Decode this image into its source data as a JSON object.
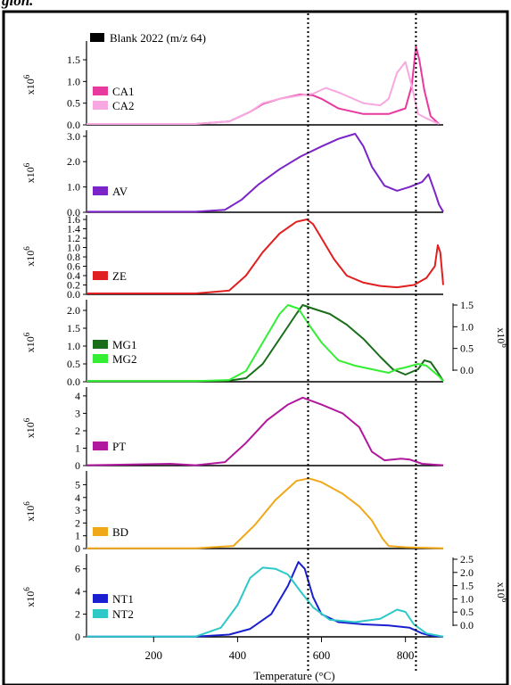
{
  "caption_fragment": "gion.",
  "legend_top": {
    "label": "Blank 2022 (m/z 64)",
    "color": "#000000"
  },
  "xaxis": {
    "label": "Temperature (°C)",
    "ticks": [
      200,
      400,
      600,
      800
    ],
    "range": [
      40,
      890
    ]
  },
  "vlines": [
    568,
    825
  ],
  "yunit": "x10",
  "yexp": "6",
  "chart_data": [
    {
      "type": "line",
      "ylim": [
        0,
        1.85
      ],
      "yticks": [
        "0.0",
        "0.5",
        "1.0",
        "1.5"
      ],
      "series": [
        {
          "name": "CA1",
          "color": "#e8399f",
          "x": [
            40,
            300,
            380,
            430,
            460,
            500,
            550,
            580,
            600,
            640,
            700,
            760,
            800,
            815,
            825,
            833,
            845,
            860,
            880
          ],
          "y": [
            0.02,
            0.02,
            0.08,
            0.3,
            0.48,
            0.6,
            0.7,
            0.68,
            0.6,
            0.38,
            0.25,
            0.25,
            0.38,
            0.9,
            1.8,
            1.5,
            0.8,
            0.2,
            0.02
          ]
        },
        {
          "name": "CA2",
          "color": "#f7a8e0",
          "x": [
            40,
            300,
            380,
            430,
            460,
            500,
            550,
            580,
            610,
            640,
            700,
            740,
            760,
            780,
            800,
            815,
            830,
            850,
            880
          ],
          "y": [
            0.02,
            0.02,
            0.08,
            0.3,
            0.5,
            0.6,
            0.68,
            0.72,
            0.85,
            0.75,
            0.5,
            0.45,
            0.6,
            1.2,
            1.45,
            0.9,
            0.25,
            0.15,
            0.02
          ]
        }
      ]
    },
    {
      "type": "line",
      "ylim": [
        0,
        3.1
      ],
      "yticks": [
        "0.0",
        "1.0",
        "2.0",
        "3.0"
      ],
      "series": [
        {
          "name": "AV",
          "color": "#7b24c8",
          "x": [
            40,
            300,
            370,
            410,
            450,
            500,
            550,
            600,
            640,
            680,
            700,
            720,
            750,
            780,
            810,
            840,
            855,
            870,
            880,
            890
          ],
          "y": [
            0.02,
            0.02,
            0.1,
            0.5,
            1.1,
            1.7,
            2.2,
            2.6,
            2.9,
            3.1,
            2.6,
            1.8,
            1.05,
            0.85,
            1.0,
            1.2,
            1.5,
            0.8,
            0.3,
            0.02
          ]
        }
      ]
    },
    {
      "type": "line",
      "ylim": [
        0,
        1.62
      ],
      "yticks": [
        "0.0",
        "0.2",
        "0.4",
        "0.6",
        "0.8",
        "1.0",
        "1.2",
        "1.4",
        "1.6"
      ],
      "series": [
        {
          "name": "ZE",
          "color": "#e02020",
          "x": [
            40,
            300,
            380,
            420,
            460,
            500,
            540,
            565,
            580,
            600,
            630,
            660,
            700,
            740,
            780,
            820,
            850,
            870,
            877,
            883,
            890
          ],
          "y": [
            0.02,
            0.02,
            0.08,
            0.4,
            0.9,
            1.3,
            1.55,
            1.6,
            1.5,
            1.2,
            0.75,
            0.4,
            0.25,
            0.18,
            0.15,
            0.2,
            0.35,
            0.6,
            1.05,
            0.9,
            0.2
          ]
        }
      ]
    },
    {
      "type": "line",
      "ylim": [
        0,
        2.2
      ],
      "yticks": [
        "0.0",
        "0.5",
        "1.0",
        "1.5",
        "2.0"
      ],
      "y2ticks": [
        "0.0",
        "0.5",
        "1.0",
        "1.5"
      ],
      "series": [
        {
          "name": "MG1",
          "color": "#1a6e1a",
          "x": [
            40,
            300,
            380,
            420,
            460,
            500,
            540,
            555,
            580,
            620,
            660,
            700,
            740,
            770,
            800,
            830,
            845,
            860,
            875,
            890
          ],
          "y": [
            0.02,
            0.02,
            0.03,
            0.1,
            0.5,
            1.2,
            1.9,
            2.15,
            2.05,
            1.9,
            1.6,
            1.2,
            0.7,
            0.35,
            0.2,
            0.35,
            0.6,
            0.55,
            0.3,
            0.02
          ]
        },
        {
          "name": "MG2",
          "color": "#33ee33",
          "x": [
            40,
            300,
            380,
            420,
            460,
            500,
            520,
            545,
            570,
            600,
            640,
            680,
            720,
            760,
            780,
            800,
            830,
            850,
            880,
            890
          ],
          "y": [
            0.02,
            0.02,
            0.05,
            0.3,
            1.1,
            1.9,
            2.15,
            2.05,
            1.6,
            1.1,
            0.6,
            0.45,
            0.35,
            0.25,
            0.35,
            0.4,
            0.5,
            0.45,
            0.15,
            0.02
          ]
        }
      ]
    },
    {
      "type": "line",
      "ylim": [
        0,
        4.3
      ],
      "yticks": [
        "0",
        "1",
        "2",
        "3",
        "4"
      ],
      "series": [
        {
          "name": "PT",
          "color": "#b0189e",
          "x": [
            40,
            240,
            300,
            370,
            420,
            470,
            520,
            555,
            600,
            650,
            690,
            720,
            750,
            790,
            810,
            840,
            870,
            890
          ],
          "y": [
            0.02,
            0.1,
            0.02,
            0.2,
            1.3,
            2.6,
            3.5,
            3.9,
            3.5,
            3.0,
            2.2,
            0.8,
            0.3,
            0.4,
            0.35,
            0.1,
            0.05,
            0.02
          ]
        }
      ]
    },
    {
      "type": "line",
      "ylim": [
        0,
        5.8
      ],
      "yticks": [
        "0",
        "1",
        "2",
        "3",
        "4",
        "5"
      ],
      "series": [
        {
          "name": "BD",
          "color": "#f0a818",
          "x": [
            40,
            300,
            390,
            440,
            490,
            540,
            570,
            600,
            650,
            690,
            720,
            745,
            760,
            800,
            850,
            890
          ],
          "y": [
            0.02,
            0.02,
            0.2,
            1.8,
            3.8,
            5.3,
            5.5,
            5.2,
            4.3,
            3.3,
            2.2,
            0.8,
            0.2,
            0.1,
            0.05,
            0.02
          ]
        }
      ]
    },
    {
      "type": "line",
      "ylim": [
        0,
        7.0
      ],
      "yticks": [
        "0",
        "2",
        "4",
        "6"
      ],
      "y2ticks": [
        "0.0",
        "0.5",
        "1.0",
        "1.5",
        "2.0",
        "2.5"
      ],
      "series": [
        {
          "name": "NT1",
          "color": "#1a20d0",
          "x": [
            40,
            300,
            380,
            430,
            480,
            520,
            545,
            560,
            580,
            600,
            640,
            700,
            760,
            810,
            840,
            860,
            890
          ],
          "y": [
            0.02,
            0.02,
            0.2,
            0.7,
            2.0,
            4.5,
            6.6,
            6.0,
            3.5,
            2.0,
            1.3,
            1.1,
            1.0,
            0.8,
            0.3,
            0.1,
            0.02
          ]
        },
        {
          "name": "NT2",
          "color": "#2ec8c8",
          "x": [
            40,
            300,
            360,
            400,
            430,
            460,
            490,
            520,
            550,
            580,
            620,
            680,
            740,
            780,
            800,
            820,
            850,
            890
          ],
          "y": [
            0.02,
            0.02,
            0.8,
            2.8,
            5.2,
            6.1,
            6.0,
            5.5,
            4.0,
            2.6,
            1.5,
            1.3,
            1.6,
            2.4,
            2.2,
            1.1,
            0.3,
            0.02
          ]
        }
      ]
    }
  ]
}
